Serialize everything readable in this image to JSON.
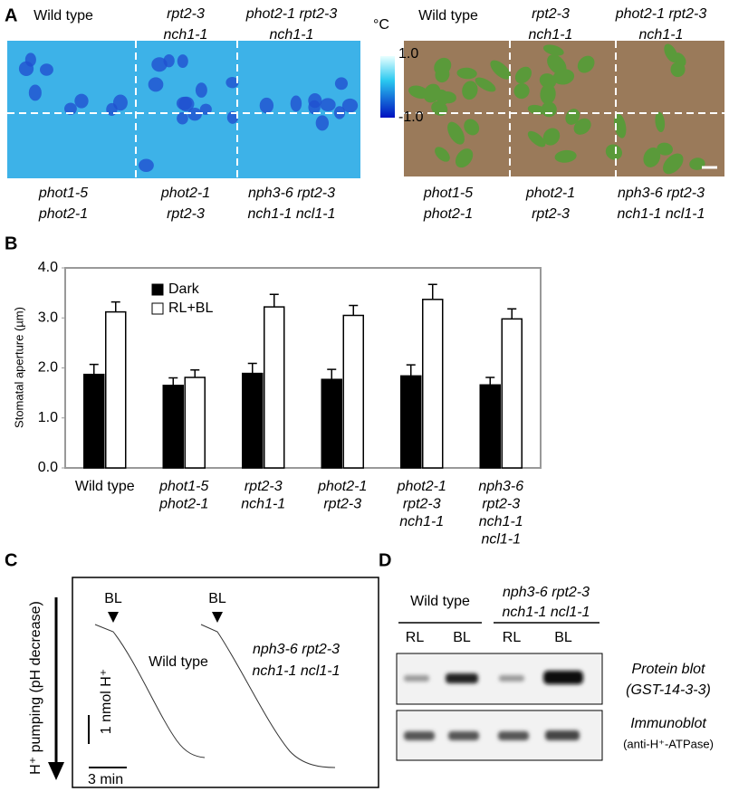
{
  "panel_a": {
    "label": "A",
    "top_genotypes": [
      [
        "Wild type"
      ],
      [
        "rpt2-3",
        "nch1-1"
      ],
      [
        "phot2-1 rpt2-3",
        "nch1-1"
      ]
    ],
    "bottom_genotypes": [
      [
        "phot1-5",
        "phot2-1"
      ],
      [
        "phot2-1",
        "rpt2-3"
      ],
      [
        "nph3-6 rpt2-3",
        "nch1-1 ncl1-1"
      ]
    ],
    "colorbar_unit": "°C",
    "colorbar_max": "1.0",
    "colorbar_min": "-1.0"
  },
  "chart_data": {
    "type": "bar",
    "panel_label": "B",
    "y_label": "Stomatal aperture (µm)",
    "categories": [
      [
        "Wild type"
      ],
      [
        "phot1-5",
        "phot2-1"
      ],
      [
        "rpt2-3",
        "nch1-1"
      ],
      [
        "phot2-1",
        "rpt2-3"
      ],
      [
        "phot2-1",
        "rpt2-3",
        "nch1-1"
      ],
      [
        "nph3-6",
        "rpt2-3",
        "nch1-1",
        "ncl1-1"
      ]
    ],
    "series": [
      {
        "name": "Dark",
        "color": "#000000",
        "values": [
          1.87,
          1.65,
          1.89,
          1.77,
          1.84,
          1.66
        ],
        "errors": [
          0.2,
          0.15,
          0.2,
          0.2,
          0.22,
          0.15
        ]
      },
      {
        "name": "RL+BL",
        "color": "#ffffff",
        "values": [
          3.12,
          1.81,
          3.22,
          3.05,
          3.37,
          2.98
        ],
        "errors": [
          0.2,
          0.15,
          0.25,
          0.2,
          0.3,
          0.2
        ]
      }
    ],
    "ylim": [
      0,
      4
    ],
    "yticks": [
      {
        "value": 0,
        "label": "0.0"
      },
      {
        "value": 1,
        "label": "1.0"
      },
      {
        "value": 2,
        "label": "2.0"
      },
      {
        "value": 3,
        "label": "3.0"
      },
      {
        "value": 4,
        "label": "4.0"
      }
    ]
  },
  "panel_c": {
    "label": "C",
    "y_label": "H⁺ pumping (pH decrease)",
    "stimulus": "BL",
    "traces": [
      [
        "Wild type"
      ],
      [
        "nph3-6 rpt2-3",
        "nch1-1 ncl1-1"
      ]
    ],
    "scale_vertical": "1 nmol H⁺",
    "scale_horizontal": "3 min"
  },
  "panel_d": {
    "label": "D",
    "groups": [
      [
        "Wild type"
      ],
      [
        "nph3-6 rpt2-3",
        "nch1-1 ncl1-1"
      ]
    ],
    "lanes": [
      "RL",
      "BL",
      "RL",
      "BL"
    ],
    "blots": [
      [
        "Protein blot",
        "(GST-14-3-3)"
      ],
      [
        "Immunoblot",
        "(anti-H⁺-ATPase)"
      ]
    ]
  }
}
